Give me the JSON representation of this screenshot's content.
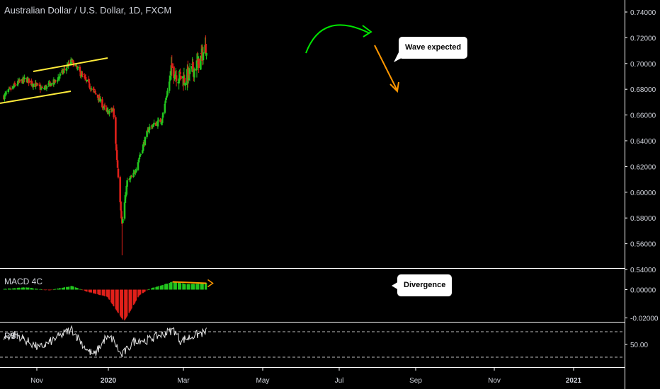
{
  "header": {
    "title": "Australian Dollar / U.S. Dollar, 1D, FXCM"
  },
  "chart_data": [
    {
      "type": "candlestick",
      "title": "Australian Dollar / U.S. Dollar, 1D, FXCM",
      "symbol": "AUDUSD",
      "ylim": [
        0.54,
        0.745
      ],
      "y_ticks": [
        "0.74000",
        "0.72000",
        "0.70000",
        "0.68000",
        "0.66000",
        "0.64000",
        "0.62000",
        "0.60000",
        "0.58000",
        "0.56000",
        "0.54000"
      ],
      "x_ticks": [
        "Nov",
        "2020",
        "Mar",
        "May",
        "Jul",
        "Sep",
        "Nov",
        "2021"
      ],
      "up_color": "#26a69a",
      "candle_up_color": "#22c51e",
      "candle_down_color": "#e0201a",
      "anchors": [
        {
          "date": "2019-09-15",
          "close": 0.674
        },
        {
          "date": "2019-10-05",
          "close": 0.684
        },
        {
          "date": "2019-10-20",
          "close": 0.688
        },
        {
          "date": "2019-11-15",
          "close": 0.68
        },
        {
          "date": "2019-12-05",
          "close": 0.686
        },
        {
          "date": "2019-12-31",
          "close": 0.702
        },
        {
          "date": "2020-01-20",
          "close": 0.688
        },
        {
          "date": "2020-02-10",
          "close": 0.674
        },
        {
          "date": "2020-02-24",
          "close": 0.662
        },
        {
          "date": "2020-03-05",
          "close": 0.664
        },
        {
          "date": "2020-03-19",
          "close": 0.575
        },
        {
          "date": "2020-03-27",
          "close": 0.608
        },
        {
          "date": "2020-04-05",
          "close": 0.612
        },
        {
          "date": "2020-04-30",
          "close": 0.65
        },
        {
          "date": "2020-05-20",
          "close": 0.656
        },
        {
          "date": "2020-06-05",
          "close": 0.696
        },
        {
          "date": "2020-06-15",
          "close": 0.69
        },
        {
          "date": "2020-06-25",
          "close": 0.688
        },
        {
          "date": "2020-07-10",
          "close": 0.696
        },
        {
          "date": "2020-07-20",
          "close": 0.704
        },
        {
          "date": "2020-07-29",
          "close": 0.714
        }
      ],
      "annotations": {
        "channel_color": "#ffeb3b",
        "arc_color": "#00e600",
        "arrow_color": "#ff9800",
        "callout": "Wave expected"
      }
    },
    {
      "type": "histogram",
      "title": "MACD 4C",
      "ylim": [
        -0.025,
        0.007
      ],
      "y_ticks": [
        "0.00000",
        "-0.02000"
      ],
      "anchors": [
        {
          "date": "2019-09-15",
          "value": 0.0004
        },
        {
          "date": "2019-10-20",
          "value": 0.0016
        },
        {
          "date": "2019-11-25",
          "value": -0.0005
        },
        {
          "date": "2019-12-31",
          "value": 0.0025
        },
        {
          "date": "2020-01-25",
          "value": -0.0015
        },
        {
          "date": "2020-02-25",
          "value": -0.005
        },
        {
          "date": "2020-03-22",
          "value": -0.0225
        },
        {
          "date": "2020-04-15",
          "value": -0.004
        },
        {
          "date": "2020-05-01",
          "value": 0.0005
        },
        {
          "date": "2020-06-06",
          "value": 0.0055
        },
        {
          "date": "2020-06-30",
          "value": 0.0038
        },
        {
          "date": "2020-07-29",
          "value": 0.0045
        }
      ],
      "divergence_line": {
        "start": {
          "date": "2020-06-06",
          "value": 0.0055
        },
        "end": {
          "date": "2020-07-29",
          "value": 0.0045
        },
        "color": "#ff9800"
      },
      "callout": "Divergence"
    },
    {
      "type": "line",
      "title": "RSI",
      "ylim": [
        28,
        78
      ],
      "y_ticks": [
        "50.00"
      ],
      "bands": [
        70,
        30
      ],
      "line_color": "#e6e6e6",
      "anchors": [
        {
          "date": "2019-09-15",
          "value": 60
        },
        {
          "date": "2019-10-05",
          "value": 66
        },
        {
          "date": "2019-11-10",
          "value": 44
        },
        {
          "date": "2019-12-31",
          "value": 74
        },
        {
          "date": "2020-01-25",
          "value": 40
        },
        {
          "date": "2020-02-05",
          "value": 34
        },
        {
          "date": "2020-02-22",
          "value": 60
        },
        {
          "date": "2020-03-05",
          "value": 58
        },
        {
          "date": "2020-03-18",
          "value": 32
        },
        {
          "date": "2020-04-10",
          "value": 58
        },
        {
          "date": "2020-04-25",
          "value": 56
        },
        {
          "date": "2020-06-08",
          "value": 73
        },
        {
          "date": "2020-06-18",
          "value": 56
        },
        {
          "date": "2020-07-10",
          "value": 64
        },
        {
          "date": "2020-07-29",
          "value": 70
        }
      ]
    }
  ]
}
